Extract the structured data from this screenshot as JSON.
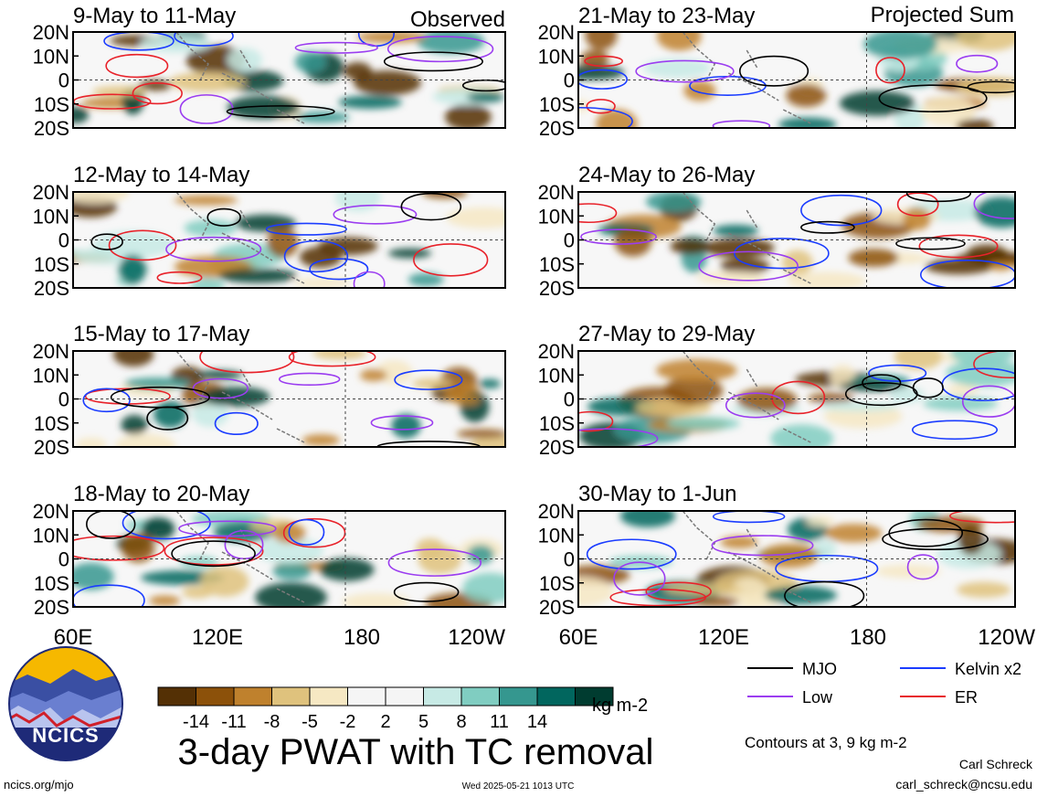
{
  "colors": {
    "mjo": "#000000",
    "kelvin": "#1a3cff",
    "low": "#9b3df0",
    "er": "#e8222a",
    "land": "#7a7a7a",
    "scale": [
      "#543005",
      "#8c510a",
      "#bf812d",
      "#dfc27d",
      "#f6e8c3",
      "#f5f5f5",
      "#f5f5f5",
      "#c7eae5",
      "#80cdc1",
      "#35978f",
      "#01665e",
      "#003c30"
    ]
  },
  "header": {
    "left": "Observed",
    "right": "Projected Sum"
  },
  "axes": {
    "lat_ticks": [
      "20N",
      "10N",
      "0",
      "10S",
      "20S"
    ],
    "lon_ticks": [
      "60E",
      "120E",
      "180",
      "120W"
    ],
    "lon_ticks_right": [
      "60E",
      "120E",
      "180",
      "120W"
    ]
  },
  "panels": [
    {
      "id": "obs1",
      "title": "9-May to 11-May"
    },
    {
      "id": "obs2",
      "title": "12-May to 14-May"
    },
    {
      "id": "obs3",
      "title": "15-May to 17-May"
    },
    {
      "id": "obs4",
      "title": "18-May to 20-May"
    },
    {
      "id": "prj1",
      "title": "21-May to 23-May"
    },
    {
      "id": "prj2",
      "title": "24-May to 26-May"
    },
    {
      "id": "prj3",
      "title": "27-May to 29-May"
    },
    {
      "id": "prj4",
      "title": "30-May to 1-Jun"
    }
  ],
  "colorbar": {
    "labels": [
      "-14",
      "-11",
      "-8",
      "-5",
      "-2",
      "2",
      "5",
      "8",
      "11",
      "14"
    ],
    "units": "kg m-2"
  },
  "legend": {
    "mjo": "MJO",
    "kelvin": "Kelvin x2",
    "low": "Low",
    "er": "ER",
    "contours_note": "Contours at 3, 9 kg m-2"
  },
  "footer": {
    "main_title": "3-day PWAT with TC removal",
    "logo_text": "NCICS",
    "site": "ncics.org/mjo",
    "timestamp": "Wed 2025-05-21 1013 UTC",
    "author": "Carl Schreck",
    "email": "carl_schreck@ncsu.edu"
  },
  "chart_data": [
    {
      "type": "heatmap",
      "title": "9-May to 11-May",
      "group": "Observed",
      "x_range": [
        "60E",
        "120W"
      ],
      "y_range": [
        "20S",
        "20N"
      ],
      "units": "kg m-2",
      "contour_levels": [
        3,
        9
      ],
      "series": [
        "MJO",
        "Kelvin x2",
        "Low",
        "ER"
      ]
    },
    {
      "type": "heatmap",
      "title": "12-May to 14-May",
      "group": "Observed",
      "x_range": [
        "60E",
        "120W"
      ],
      "y_range": [
        "20S",
        "20N"
      ],
      "units": "kg m-2",
      "contour_levels": [
        3,
        9
      ],
      "series": [
        "MJO",
        "Kelvin x2",
        "Low",
        "ER"
      ]
    },
    {
      "type": "heatmap",
      "title": "15-May to 17-May",
      "group": "Observed",
      "x_range": [
        "60E",
        "120W"
      ],
      "y_range": [
        "20S",
        "20N"
      ],
      "units": "kg m-2",
      "contour_levels": [
        3,
        9
      ],
      "series": [
        "MJO",
        "Kelvin x2",
        "Low",
        "ER"
      ]
    },
    {
      "type": "heatmap",
      "title": "18-May to 20-May",
      "group": "Observed",
      "x_range": [
        "60E",
        "120W"
      ],
      "y_range": [
        "20S",
        "20N"
      ],
      "units": "kg m-2",
      "contour_levels": [
        3,
        9
      ],
      "series": [
        "MJO",
        "Kelvin x2",
        "Low",
        "ER"
      ]
    },
    {
      "type": "heatmap",
      "title": "21-May to 23-May",
      "group": "Projected Sum",
      "x_range": [
        "60E",
        "120W"
      ],
      "y_range": [
        "20S",
        "20N"
      ],
      "units": "kg m-2",
      "contour_levels": [
        3,
        9
      ],
      "series": [
        "MJO",
        "Kelvin x2",
        "Low",
        "ER"
      ]
    },
    {
      "type": "heatmap",
      "title": "24-May to 26-May",
      "group": "Projected Sum",
      "x_range": [
        "60E",
        "120W"
      ],
      "y_range": [
        "20S",
        "20N"
      ],
      "units": "kg m-2",
      "contour_levels": [
        3,
        9
      ],
      "series": [
        "MJO",
        "Kelvin x2",
        "Low",
        "ER"
      ]
    },
    {
      "type": "heatmap",
      "title": "27-May to 29-May",
      "group": "Projected Sum",
      "x_range": [
        "60E",
        "120W"
      ],
      "y_range": [
        "20S",
        "20N"
      ],
      "units": "kg m-2",
      "contour_levels": [
        3,
        9
      ],
      "series": [
        "MJO",
        "Kelvin x2",
        "Low",
        "ER"
      ]
    },
    {
      "type": "heatmap",
      "title": "30-May to 1-Jun",
      "group": "Projected Sum",
      "x_range": [
        "60E",
        "120W"
      ],
      "y_range": [
        "20S",
        "20N"
      ],
      "units": "kg m-2",
      "contour_levels": [
        3,
        9
      ],
      "series": [
        "MJO",
        "Kelvin x2",
        "Low",
        "ER"
      ]
    }
  ]
}
